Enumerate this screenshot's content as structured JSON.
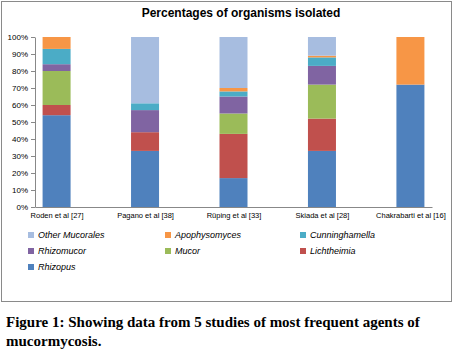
{
  "chart_data": {
    "type": "bar",
    "title": "Percentages of organisms isolated",
    "caption": "Figure 1: Showing data from 5 studies of most frequent agents of mucormycosis.",
    "categories": [
      "Roden et al [27]",
      "Pagano et al [38]",
      "Rüping et al [33]",
      "Skiada et al [28]",
      "Chakrabarti et al [16]"
    ],
    "series": [
      {
        "name": "Rhizopus",
        "color": "#4f81bd",
        "values": [
          54,
          33,
          17,
          33,
          72
        ]
      },
      {
        "name": "Lichtheimia",
        "color": "#c0504d",
        "values": [
          6,
          11,
          26,
          19,
          0
        ]
      },
      {
        "name": "Mucor",
        "color": "#9bbb59",
        "values": [
          20,
          0,
          12,
          20,
          0
        ]
      },
      {
        "name": "Rhizomucor",
        "color": "#8064a2",
        "values": [
          4,
          13,
          10,
          11,
          0
        ]
      },
      {
        "name": "Cunninghamella",
        "color": "#4bacc6",
        "values": [
          9,
          4,
          3,
          5,
          0
        ]
      },
      {
        "name": "Apophysomyces",
        "color": "#f79646",
        "values": [
          7,
          0,
          2,
          1,
          28
        ]
      },
      {
        "name": "Other Mucorales",
        "color": "#a7bde0",
        "values": [
          0,
          39,
          30,
          11,
          0
        ]
      }
    ],
    "stacked": true,
    "ylim": [
      0,
      100
    ],
    "yticks": [
      {
        "value": 0,
        "label": "0%"
      },
      {
        "value": 10,
        "label": "10%"
      },
      {
        "value": 20,
        "label": "20%"
      },
      {
        "value": 30,
        "label": "30%"
      },
      {
        "value": 40,
        "label": "40%"
      },
      {
        "value": 50,
        "label": "50%"
      },
      {
        "value": 60,
        "label": "60%"
      },
      {
        "value": 70,
        "label": "70%"
      },
      {
        "value": 80,
        "label": "80%"
      },
      {
        "value": 90,
        "label": "90%"
      },
      {
        "value": 100,
        "label": "100%"
      }
    ],
    "grid": false,
    "legend": "bottom"
  }
}
